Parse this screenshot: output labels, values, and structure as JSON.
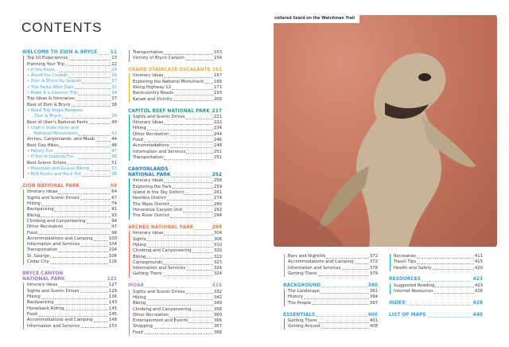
{
  "page_title": "CONTENTS",
  "photo": {
    "caption": "collared lizard on the Watchman Trail",
    "icon": "lizard-photo"
  },
  "colors": {
    "blue": "#2ea3d8",
    "zion": "#e8705a",
    "bryce": "#a07ac0",
    "grand_staircase": "#e8a840",
    "capitol_reef": "#1fa08c",
    "canyonlands": "#1e7fb0",
    "arches": "#f07b45",
    "moab": "#b08ad0"
  },
  "columns": [
    {
      "blocks": [
        {
          "title": "WELCOME TO ZION & BRYCE",
          "page": "11",
          "color": "#2ea3d8",
          "items": [
            {
              "label": "Top 10 Experiences",
              "page": "13"
            },
            {
              "label": "Planning Your Trip",
              "page": "22"
            },
            {
              "label": "• If You Have...",
              "page": "24",
              "sub": true
            },
            {
              "label": "• Avoid the Crowds",
              "page": "26",
              "sub": true
            },
            {
              "label": "• Zion & Bryce by Season",
              "page": "27",
              "sub": true
            },
            {
              "label": "• The Parks After Dark",
              "page": "32",
              "sub": true
            },
            {
              "label": "• Make It a Greener Trip",
              "page": "34",
              "sub": true
            },
            {
              "label": "Trip Ideas & Itineraries",
              "page": "37"
            },
            {
              "label": "Best of Zion & Bryce",
              "page": "38"
            },
            {
              "label": "• Road Trip Stops Between",
              "label2": "Zion & Bryce",
              "page": "39",
              "sub": true
            },
            {
              "label": "Best of Utah's National Parks",
              "page": "40"
            },
            {
              "label": "• Utah's State Parks and",
              "label2": "National Monuments",
              "page": "43",
              "sub": true
            },
            {
              "label": "Arches, Canyonlands, and Moab",
              "page": "44"
            },
            {
              "label": "Best Day Hikes",
              "page": "46"
            },
            {
              "label": "• Family Fun",
              "page": "47",
              "sub": true
            },
            {
              "label": "• If You're Looking For...",
              "page": "48",
              "sub": true
            },
            {
              "label": "Best Scenic Drives",
              "page": "51"
            },
            {
              "label": "• Mountain and Gravel Biking",
              "page": "53",
              "sub": true
            },
            {
              "label": "• Red Rocks and Rock Art",
              "page": "56",
              "sub": true
            }
          ]
        },
        {
          "title": "ZION NATIONAL PARK",
          "page": "59",
          "color": "#e8705a",
          "items": [
            {
              "label": "Itinerary Ideas",
              "page": "64"
            },
            {
              "label": "Sights and Scenic Drives",
              "page": "67"
            },
            {
              "label": "Hiking",
              "page": "74"
            },
            {
              "label": "Backpacking",
              "page": "91"
            },
            {
              "label": "Biking",
              "page": "93"
            },
            {
              "label": "Climbing and Canyoneering",
              "page": "94"
            },
            {
              "label": "Other Recreation",
              "page": "97"
            },
            {
              "label": "Food",
              "page": "98"
            },
            {
              "label": "Accommodations and Camping",
              "page": "100"
            },
            {
              "label": "Information and Services",
              "page": "104"
            },
            {
              "label": "Transportation",
              "page": "104"
            },
            {
              "label": "St. George",
              "page": "106"
            },
            {
              "label": "Cedar City",
              "page": "116"
            }
          ]
        },
        {
          "title": "BRYCE CANYON",
          "title2": "NATIONAL PARK",
          "page": "121",
          "color": "#a07ac0",
          "items": [
            {
              "label": "Itinerary Ideas",
              "page": "127"
            },
            {
              "label": "Sights and Scenic Drives",
              "page": "129"
            },
            {
              "label": "Hiking",
              "page": "136"
            },
            {
              "label": "Backpacking",
              "page": "143"
            },
            {
              "label": "Horseback Riding",
              "page": "145"
            },
            {
              "label": "Food",
              "page": "145"
            },
            {
              "label": "Accommodations and Camping",
              "page": "148"
            },
            {
              "label": "Information and Services",
              "page": "153"
            }
          ]
        }
      ]
    },
    {
      "blocks": [
        {
          "color": "#a07ac0",
          "items": [
            {
              "label": "Transportation",
              "page": "153"
            },
            {
              "label": "Vicinity of Bryce Canyon",
              "page": "154"
            }
          ]
        },
        {
          "title": "GRAND STAIRCASE-ESCALANTE",
          "page": "161",
          "color": "#e8a840",
          "items": [
            {
              "label": "Itinerary Ideas",
              "page": "167"
            },
            {
              "label": "Exploring the National Monument",
              "page": "168"
            },
            {
              "label": "Along Highway 12",
              "page": "171"
            },
            {
              "label": "Backcountry Roads",
              "page": "193"
            },
            {
              "label": "Kanab and Vicinity",
              "page": "205"
            }
          ]
        },
        {
          "title": "CAPITOL REEF NATIONAL PARK",
          "page": "217",
          "color": "#1fa08c",
          "items": [
            {
              "label": "Sights and Scenic Drives",
              "page": "221"
            },
            {
              "label": "Itinerary Ideas",
              "page": "222"
            },
            {
              "label": "Hiking",
              "page": "234"
            },
            {
              "label": "Other Recreation",
              "page": "244"
            },
            {
              "label": "Food",
              "page": "246"
            },
            {
              "label": "Accommodations",
              "page": "248"
            },
            {
              "label": "Information and Services",
              "page": "251"
            },
            {
              "label": "Transportation",
              "page": "251"
            }
          ]
        },
        {
          "title": "CANYONLANDS",
          "title2": "NATIONAL PARK",
          "page": "252",
          "color": "#1e7fb0",
          "items": [
            {
              "label": "Itinerary Ideas",
              "page": "258"
            },
            {
              "label": "Exploring the Park",
              "page": "259"
            },
            {
              "label": "Island in the Sky District",
              "page": "261"
            },
            {
              "label": "Needles District",
              "page": "274"
            },
            {
              "label": "The Maze District",
              "page": "289"
            },
            {
              "label": "Horseshoe Canyon Unit",
              "page": "292"
            },
            {
              "label": "The River District",
              "page": "294"
            }
          ]
        },
        {
          "title": "ARCHES NATIONAL PARK",
          "page": "298",
          "color": "#f07b45",
          "items": [
            {
              "label": "Itinerary Ideas",
              "page": "304"
            },
            {
              "label": "Sights",
              "page": "306"
            },
            {
              "label": "Hiking",
              "page": "310"
            },
            {
              "label": "Climbing and Canyoneering",
              "page": "320"
            },
            {
              "label": "Biking",
              "page": "322"
            },
            {
              "label": "Campgrounds",
              "page": "323"
            },
            {
              "label": "Information and Services",
              "page": "324"
            },
            {
              "label": "Getting There",
              "page": "324"
            }
          ]
        },
        {
          "title": "MOAB",
          "page": "325",
          "color": "#b08ad0",
          "items": [
            {
              "label": "Sights and Scenic Drives",
              "page": "332"
            },
            {
              "label": "Hiking",
              "page": "342"
            },
            {
              "label": "Biking",
              "page": "349"
            },
            {
              "label": "Climbing and Canyoneering",
              "page": "358"
            },
            {
              "label": "Other Recreation",
              "page": "360"
            },
            {
              "label": "Entertainment and Events",
              "page": "366"
            },
            {
              "label": "Shopping",
              "page": "367"
            },
            {
              "label": "Food",
              "page": "368"
            }
          ]
        }
      ]
    },
    {
      "blocks": [
        {
          "color": "#b08ad0",
          "items": [
            {
              "label": "Bars and Nightlife",
              "page": "372"
            },
            {
              "label": "Accommodations and Camping",
              "page": "372"
            },
            {
              "label": "Information and Services",
              "page": "378"
            },
            {
              "label": "Getting There",
              "page": "379"
            }
          ]
        },
        {
          "title": "BACKGROUND",
          "page": "380",
          "color": "#2ea3d8",
          "items": [
            {
              "label": "The Landscape",
              "page": "381"
            },
            {
              "label": "History",
              "page": "394"
            },
            {
              "label": "The People",
              "page": "397"
            }
          ]
        },
        {
          "title": "ESSENTIALS",
          "page": "400",
          "color": "#2ea3d8",
          "items": [
            {
              "label": "Getting There",
              "page": "401"
            },
            {
              "label": "Getting Around",
              "page": "408"
            }
          ]
        }
      ]
    },
    {
      "blocks": [
        {
          "color": "#2ea3d8",
          "items": [
            {
              "label": "Recreation",
              "page": "411"
            },
            {
              "label": "Travel Tips",
              "page": "415"
            },
            {
              "label": "Health and Safety",
              "page": "420"
            }
          ]
        },
        {
          "title": "RESOURCES",
          "page": "423",
          "color": "#2ea3d8",
          "items": [
            {
              "label": "Suggested Reading",
              "page": "423"
            },
            {
              "label": "Internet Resources",
              "page": "426"
            }
          ]
        },
        {
          "title": "INDEX",
          "page": "428",
          "color": "#2ea3d8",
          "items": []
        },
        {
          "title": "LIST OF MAPS",
          "page": "440",
          "color": "#2ea3d8",
          "items": []
        }
      ]
    }
  ]
}
